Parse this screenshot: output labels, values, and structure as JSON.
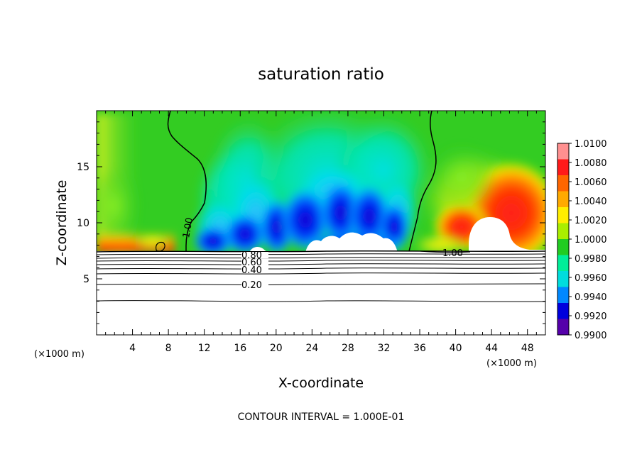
{
  "chart_data": {
    "type": "heatmap",
    "title": "saturation ratio",
    "xlabel": "X-coordinate",
    "ylabel": "Z-coordinate",
    "x_unit_label": "(×1000 m)",
    "x_ticks": [
      4,
      8,
      12,
      16,
      20,
      24,
      28,
      32,
      36,
      40,
      44,
      48
    ],
    "y_ticks": [
      5,
      10,
      15
    ],
    "xlim": [
      0,
      50
    ],
    "ylim": [
      0,
      20
    ],
    "colorbar": {
      "ticks": [
        "1.0100",
        "1.0080",
        "1.0060",
        "1.0040",
        "1.0020",
        "1.0000",
        "0.9980",
        "0.9960",
        "0.9940",
        "0.9920",
        "0.9900"
      ],
      "colors": [
        "#ff9090",
        "#ff1a1a",
        "#ff6600",
        "#ffaa00",
        "#ffee00",
        "#aaee00",
        "#22cc22",
        "#00ee99",
        "#00dddd",
        "#0088ff",
        "#0000dd",
        "#5500aa"
      ]
    },
    "contour_labels": [
      "1.00",
      "1.00",
      "0.80",
      "0.60",
      "0.40",
      "0.20"
    ],
    "contour_interval_text": "CONTOUR INTERVAL = 1.000E-01",
    "grid": false,
    "legend": "right"
  }
}
